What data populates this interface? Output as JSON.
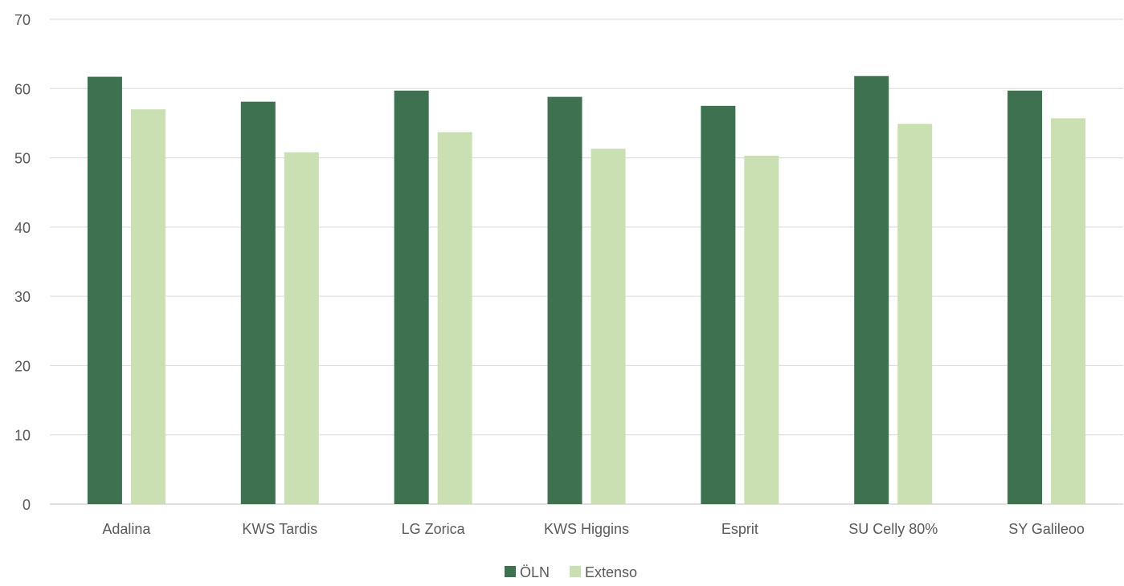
{
  "chart_data": {
    "type": "bar",
    "title": "",
    "xlabel": "",
    "ylabel": "",
    "categories": [
      "Adalina",
      "KWS Tardis",
      "LG Zorica",
      "KWS Higgins",
      "Esprit",
      "SU Celly 80%",
      "SY Galileoo"
    ],
    "series": [
      {
        "name": "ÖLN",
        "color": "#3e7150",
        "values": [
          61.7,
          58.1,
          59.7,
          58.8,
          57.5,
          61.8,
          59.7
        ]
      },
      {
        "name": "Extenso",
        "color": "#cadfb2",
        "values": [
          57.0,
          50.8,
          53.7,
          51.3,
          50.3,
          54.9,
          55.7
        ]
      }
    ],
    "ylim": [
      0,
      70
    ],
    "yticks": [
      0,
      10,
      20,
      30,
      40,
      50,
      60,
      70
    ],
    "grid": true,
    "legend_position": "bottom-center"
  }
}
